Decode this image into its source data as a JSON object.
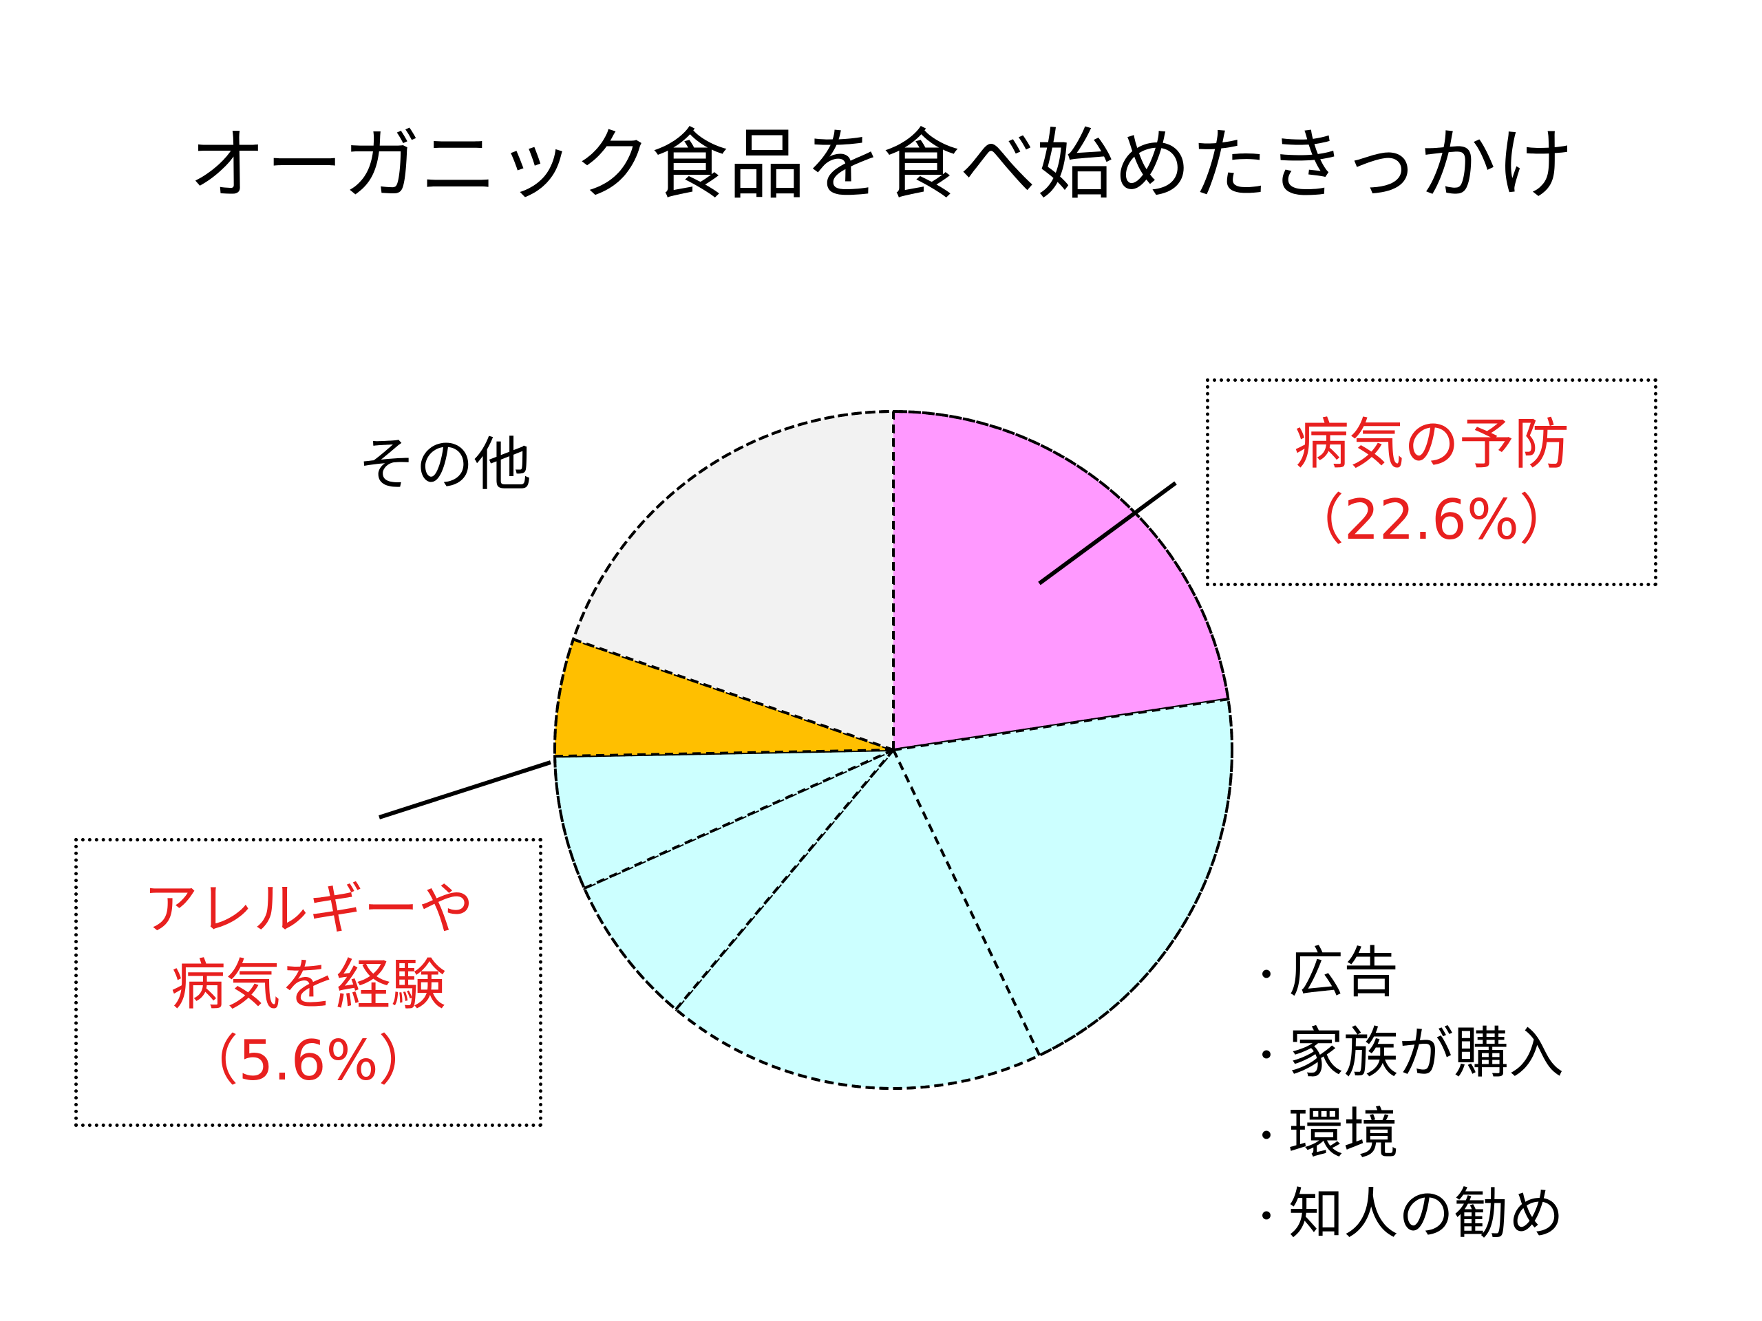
{
  "title": "オーガニック食品を食べ始めたきっかけ",
  "chart_data": {
    "type": "pie",
    "title": "オーガニック食品を食べ始めたきっかけ",
    "slices": [
      {
        "label": "病気の予防",
        "value": 22.6,
        "color": "#ff99ff"
      },
      {
        "label": "",
        "value": 20.3,
        "color": "#ccffff"
      },
      {
        "label": "",
        "value": 18.2,
        "color": "#ccffff"
      },
      {
        "label": "",
        "value": 7.2,
        "color": "#ccffff"
      },
      {
        "label": "",
        "value": 6.4,
        "color": "#ccffff"
      },
      {
        "label": "アレルギーや病気を経験",
        "value": 5.6,
        "color": "#ffbf00"
      },
      {
        "label": "その他",
        "value": 19.7,
        "color": "#f2f2f2"
      }
    ],
    "start_angle": "top",
    "direction": "clockwise",
    "border_style": "dashed"
  },
  "callouts": {
    "prevention": {
      "line1": "病気の予防",
      "line2": "（22.6%）"
    },
    "allergy": {
      "line1": "アレルギーや",
      "line2": "病気を経験",
      "line3": "（5.6%）"
    }
  },
  "other_label": "その他",
  "bullet_symbol": "・",
  "other_reasons": [
    "広告",
    "家族が購入",
    "環境",
    "知人の勧め"
  ],
  "colors": {
    "highlight_text": "#e8201f"
  }
}
